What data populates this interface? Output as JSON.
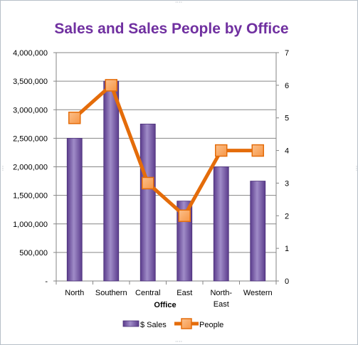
{
  "colors": {
    "title": "#7030a0",
    "bar_light": "#a08cc8",
    "bar_dark": "#5b3c8c",
    "bar_edge": "#4a2f78",
    "line": "#e46c0a",
    "marker_fill": "#f79646",
    "gridline": "#868686",
    "axis": "#868686"
  },
  "chart_data": {
    "type": "bar",
    "title": "Sales and Sales People by Office",
    "xlabel": "Office",
    "categories": [
      "North",
      "Southern",
      "Central",
      "East",
      "North-\nEast",
      "Western"
    ],
    "y_left": {
      "ylim": [
        0,
        4000000
      ],
      "ticks": [
        "-",
        "500,000",
        "1,000,000",
        "1,500,000",
        "2,000,000",
        "2,500,000",
        "3,000,000",
        "3,500,000",
        "4,000,000"
      ]
    },
    "y_right": {
      "ylim": [
        0,
        7
      ],
      "ticks": [
        "0",
        "1",
        "2",
        "3",
        "4",
        "5",
        "6",
        "7"
      ]
    },
    "series": [
      {
        "name": "$ Sales",
        "type": "bar",
        "axis": "left",
        "values": [
          2500000,
          3500000,
          2750000,
          1400000,
          2000000,
          1750000
        ]
      },
      {
        "name": "People",
        "type": "line",
        "axis": "right",
        "values": [
          5,
          6,
          3,
          2,
          4,
          4
        ]
      }
    ],
    "grid": true,
    "legend": "bottom"
  }
}
